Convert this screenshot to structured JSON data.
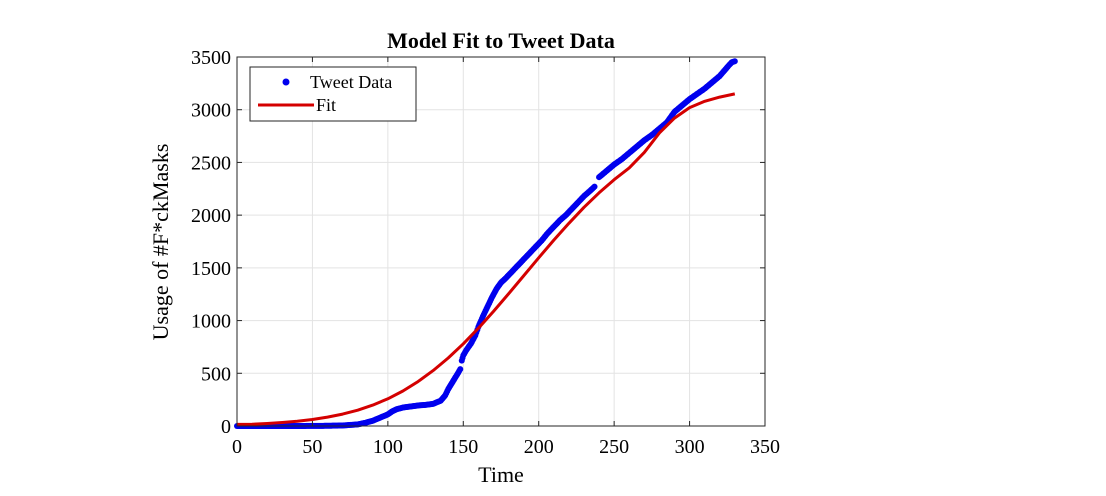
{
  "chart_data": {
    "type": "line",
    "title": "Model Fit to Tweet Data",
    "xlabel": "Time",
    "ylabel": "Usage of #F*ckMasks",
    "xlim": [
      0,
      350
    ],
    "ylim": [
      0,
      3500
    ],
    "xticks": [
      0,
      50,
      100,
      150,
      200,
      250,
      300,
      350
    ],
    "yticks": [
      0,
      500,
      1000,
      1500,
      2000,
      2500,
      3000,
      3500
    ],
    "grid": true,
    "legend": "top-left",
    "series": [
      {
        "name": "Tweet Data",
        "style": "markers",
        "color": "#0000ee",
        "points": [
          [
            0,
            0
          ],
          [
            10,
            0
          ],
          [
            20,
            0
          ],
          [
            30,
            0
          ],
          [
            40,
            0
          ],
          [
            50,
            1
          ],
          [
            60,
            2
          ],
          [
            70,
            5
          ],
          [
            80,
            15
          ],
          [
            85,
            30
          ],
          [
            90,
            50
          ],
          [
            95,
            80
          ],
          [
            100,
            110
          ],
          [
            103,
            140
          ],
          [
            106,
            160
          ],
          [
            110,
            175
          ],
          [
            115,
            185
          ],
          [
            120,
            195
          ],
          [
            125,
            200
          ],
          [
            130,
            210
          ],
          [
            135,
            240
          ],
          [
            138,
            290
          ],
          [
            140,
            350
          ],
          [
            143,
            420
          ],
          [
            146,
            490
          ],
          [
            148,
            540
          ],
          [
            149,
            620
          ],
          [
            150,
            670
          ],
          [
            152,
            720
          ],
          [
            155,
            780
          ],
          [
            158,
            860
          ],
          [
            160,
            940
          ],
          [
            163,
            1040
          ],
          [
            166,
            1130
          ],
          [
            169,
            1220
          ],
          [
            172,
            1300
          ],
          [
            175,
            1360
          ],
          [
            178,
            1400
          ],
          [
            182,
            1460
          ],
          [
            186,
            1520
          ],
          [
            190,
            1580
          ],
          [
            194,
            1640
          ],
          [
            198,
            1700
          ],
          [
            202,
            1760
          ],
          [
            206,
            1830
          ],
          [
            210,
            1890
          ],
          [
            214,
            1950
          ],
          [
            218,
            2000
          ],
          [
            222,
            2060
          ],
          [
            226,
            2120
          ],
          [
            230,
            2180
          ],
          [
            234,
            2230
          ],
          [
            237,
            2270
          ],
          [
            240,
            2360
          ],
          [
            245,
            2420
          ],
          [
            250,
            2480
          ],
          [
            255,
            2530
          ],
          [
            260,
            2590
          ],
          [
            265,
            2650
          ],
          [
            270,
            2710
          ],
          [
            275,
            2760
          ],
          [
            280,
            2820
          ],
          [
            285,
            2880
          ],
          [
            290,
            2980
          ],
          [
            295,
            3040
          ],
          [
            300,
            3100
          ],
          [
            305,
            3150
          ],
          [
            310,
            3200
          ],
          [
            315,
            3260
          ],
          [
            320,
            3320
          ],
          [
            323,
            3370
          ],
          [
            326,
            3420
          ],
          [
            328,
            3450
          ],
          [
            330,
            3460
          ]
        ]
      },
      {
        "name": "Fit",
        "style": "line",
        "color": "#d40000",
        "points": [
          [
            0,
            15
          ],
          [
            10,
            17
          ],
          [
            20,
            24
          ],
          [
            30,
            33
          ],
          [
            40,
            45
          ],
          [
            50,
            62
          ],
          [
            60,
            84
          ],
          [
            70,
            113
          ],
          [
            80,
            150
          ],
          [
            90,
            198
          ],
          [
            100,
            258
          ],
          [
            110,
            332
          ],
          [
            120,
            421
          ],
          [
            130,
            525
          ],
          [
            140,
            645
          ],
          [
            150,
            780
          ],
          [
            160,
            928
          ],
          [
            170,
            1087
          ],
          [
            180,
            1253
          ],
          [
            190,
            1424
          ],
          [
            200,
            1595
          ],
          [
            210,
            1763
          ],
          [
            220,
            1923
          ],
          [
            230,
            2074
          ],
          [
            240,
            2212
          ],
          [
            250,
            2336
          ],
          [
            260,
            2448
          ],
          [
            270,
            2595
          ],
          [
            280,
            2780
          ],
          [
            290,
            2920
          ],
          [
            300,
            3020
          ],
          [
            310,
            3080
          ],
          [
            320,
            3120
          ],
          [
            330,
            3150
          ]
        ]
      }
    ]
  }
}
